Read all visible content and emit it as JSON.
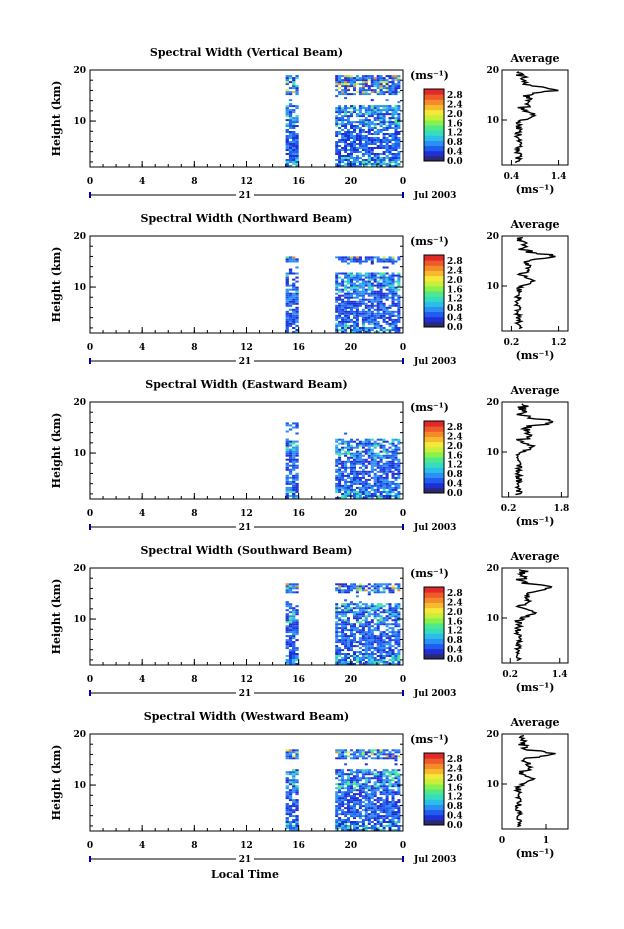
{
  "chart_data": [
    {
      "type": "heatmap",
      "title": "Spectral Width (Vertical Beam)",
      "ylabel": "Height (km)",
      "ylim": [
        1,
        20
      ],
      "yticks": [
        "20",
        "10"
      ],
      "xlim": [
        0,
        24
      ],
      "xticks": [
        "0",
        "4",
        "8",
        "12",
        "16",
        "20",
        "0"
      ],
      "day_label": "21",
      "date_label": "Jul 2003",
      "colorbar_unit": "(ms⁻¹)",
      "colorbar_ticks": [
        "2.8",
        "2.4",
        "2.0",
        "1.6",
        "1.2",
        "0.8",
        "0.4",
        "0.0"
      ],
      "data_blocks": [
        [
          15,
          16,
          1,
          19
        ],
        [
          18.8,
          23.8,
          1,
          19
        ]
      ],
      "average": {
        "title": "Average",
        "xlabel": "(ms⁻¹)",
        "xticks": [
          "0.4",
          "1.4"
        ],
        "xlim": [
          0.2,
          1.6
        ]
      }
    },
    {
      "type": "heatmap",
      "title": "Spectral Width (Northward Beam)",
      "ylabel": "Height (km)",
      "ylim": [
        1,
        20
      ],
      "yticks": [
        "20",
        "10"
      ],
      "xlim": [
        0,
        24
      ],
      "xticks": [
        "0",
        "4",
        "8",
        "12",
        "16",
        "20",
        "0"
      ],
      "day_label": "21",
      "date_label": "Jul 2003",
      "colorbar_unit": "(ms⁻¹)",
      "colorbar_ticks": [
        "2.8",
        "2.4",
        "2.0",
        "1.6",
        "1.2",
        "0.8",
        "0.4",
        "0.0"
      ],
      "data_blocks": [
        [
          15,
          16,
          1,
          16
        ],
        [
          18.8,
          23.8,
          1,
          16
        ]
      ],
      "average": {
        "title": "Average",
        "xlabel": "(ms⁻¹)",
        "xticks": [
          "0.2",
          "1.2"
        ],
        "xlim": [
          0.0,
          1.4
        ]
      }
    },
    {
      "type": "heatmap",
      "title": "Spectral Width (Eastward Beam)",
      "ylabel": "Height (km)",
      "ylim": [
        1,
        20
      ],
      "yticks": [
        "20",
        "10"
      ],
      "xlim": [
        0,
        24
      ],
      "xticks": [
        "0",
        "4",
        "8",
        "12",
        "16",
        "20",
        "0"
      ],
      "day_label": "21",
      "date_label": "Jul 2003",
      "colorbar_unit": "(ms⁻¹)",
      "colorbar_ticks": [
        "2.8",
        "2.4",
        "2.0",
        "1.6",
        "1.2",
        "0.8",
        "0.4",
        "0.0"
      ],
      "data_blocks": [
        [
          15,
          16,
          1,
          16
        ],
        [
          18.8,
          23.8,
          1,
          14
        ]
      ],
      "average": {
        "title": "Average",
        "xlabel": "(ms⁻¹)",
        "xticks": [
          "0.2",
          "1.8"
        ],
        "xlim": [
          0.0,
          2.0
        ]
      }
    },
    {
      "type": "heatmap",
      "title": "Spectral Width (Southward Beam)",
      "ylabel": "Height (km)",
      "ylim": [
        1,
        20
      ],
      "yticks": [
        "20",
        "10"
      ],
      "xlim": [
        0,
        24
      ],
      "xticks": [
        "0",
        "4",
        "8",
        "12",
        "16",
        "20",
        "0"
      ],
      "day_label": "21",
      "date_label": "Jul 2003",
      "colorbar_unit": "(ms⁻¹)",
      "colorbar_ticks": [
        "2.8",
        "2.4",
        "2.0",
        "1.6",
        "1.2",
        "0.8",
        "0.4",
        "0.0"
      ],
      "data_blocks": [
        [
          15,
          16,
          1,
          17
        ],
        [
          18.8,
          23.8,
          1,
          17
        ]
      ],
      "average": {
        "title": "Average",
        "xlabel": "(ms⁻¹)",
        "xticks": [
          "0.2",
          "1.4"
        ],
        "xlim": [
          0.0,
          1.6
        ]
      }
    },
    {
      "type": "heatmap",
      "title": "Spectral Width (Westward Beam)",
      "ylabel": "Height (km)",
      "ylim": [
        1,
        20
      ],
      "yticks": [
        "20",
        "10"
      ],
      "xlim": [
        0,
        24
      ],
      "xticks": [
        "0",
        "4",
        "8",
        "12",
        "16",
        "20",
        "0"
      ],
      "day_label": "21",
      "date_label": "Jul 2003",
      "xlabel": "Local Time",
      "colorbar_unit": "(ms⁻¹)",
      "colorbar_ticks": [
        "2.8",
        "2.4",
        "2.0",
        "1.6",
        "1.2",
        "0.8",
        "0.4",
        "0.0"
      ],
      "data_blocks": [
        [
          15,
          16,
          1,
          17
        ],
        [
          18.8,
          23.8,
          1,
          17
        ]
      ],
      "average": {
        "title": "Average",
        "xlabel": "(ms⁻¹)",
        "xticks": [
          "0",
          "1"
        ],
        "xlim": [
          0.0,
          1.5
        ]
      }
    }
  ],
  "colormap": [
    "#2a2a6e",
    "#1e2fd6",
    "#1f5cf0",
    "#2b8ff5",
    "#2bbfe8",
    "#36dcc0",
    "#4fe88a",
    "#8af04c",
    "#c8f03a",
    "#f5e83a",
    "#f7b92e",
    "#f58a2a",
    "#ef5a2a",
    "#e02a2a"
  ]
}
